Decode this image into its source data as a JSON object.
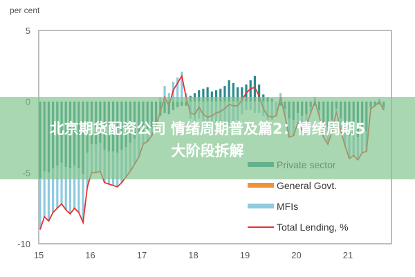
{
  "chart_data": {
    "type": "bar",
    "stacked": true,
    "unit_label": "per cent",
    "x_start": "2015-01",
    "frequency": "monthly",
    "x_tick_labels": [
      "15",
      "16",
      "17",
      "18",
      "19",
      "20",
      "21"
    ],
    "y_tick_labels": [
      "5",
      "0",
      "-5",
      "-10"
    ],
    "ylim": [
      -10,
      5
    ],
    "grid": false,
    "legend_placement": "bottom-right",
    "series": [
      {
        "name": "Private sector",
        "kind": "bar",
        "color": "#2b8a8c",
        "values": [
          -5.4,
          -4.9,
          -5.0,
          -4.7,
          -4.5,
          -4.3,
          -4.6,
          -4.7,
          -4.5,
          -4.7,
          -5.1,
          -3.6,
          -3.0,
          -3.0,
          -2.9,
          -3.4,
          -3.5,
          -3.5,
          -3.6,
          -3.4,
          -3.2,
          -2.9,
          -2.6,
          -2.3,
          -2.2,
          -2.0,
          -1.8,
          -1.5,
          -1.0,
          -0.8,
          -0.9,
          -0.6,
          -0.4,
          -0.3,
          -0.3,
          0.4,
          0.6,
          0.8,
          0.9,
          1.0,
          0.7,
          0.8,
          0.9,
          1.1,
          1.5,
          1.3,
          1.0,
          1.0,
          1.2,
          1.5,
          1.8,
          1.2,
          0.5,
          0.3,
          0.2,
          0.0,
          -0.3,
          -0.5,
          -1.2,
          -1.3,
          -0.8,
          -1.0,
          -0.9,
          -0.4,
          -0.3,
          -0.6,
          -1.5,
          -1.8,
          -1.3,
          -0.5,
          -1.2,
          -1.9,
          -2.4,
          -2.3,
          -2.5,
          -2.2,
          -2.1,
          -0.4,
          -0.3,
          -0.2,
          -0.4
        ]
      },
      {
        "name": "General Govt.",
        "kind": "bar",
        "color": "#f0923a",
        "values": [
          0,
          0,
          0,
          0,
          0,
          0,
          0,
          0,
          0,
          0,
          0,
          0,
          0,
          0,
          0,
          0,
          0,
          0,
          0,
          0,
          0,
          0,
          0,
          0,
          0,
          0,
          0,
          0,
          0,
          0,
          0,
          0,
          0,
          0,
          0,
          0,
          0,
          0,
          0,
          0,
          0,
          0,
          0,
          0,
          0,
          0,
          0,
          0,
          0,
          0,
          0,
          0,
          0,
          0,
          0,
          0,
          0,
          0,
          0,
          0,
          0,
          0,
          0,
          0,
          0,
          0,
          0,
          0,
          0,
          0,
          0,
          0,
          0,
          0,
          0,
          0,
          0,
          0,
          0,
          0,
          0
        ]
      },
      {
        "name": "MFIs",
        "kind": "bar",
        "color": "#8ecae0",
        "values": [
          -3.6,
          -3.2,
          -3.4,
          -3.1,
          -3.0,
          -2.9,
          -3.0,
          -3.2,
          -3.0,
          -3.1,
          -3.4,
          -2.4,
          -2.0,
          -2.0,
          -2.0,
          -2.3,
          -2.3,
          -2.4,
          -2.4,
          -2.3,
          -2.1,
          -2.0,
          -1.8,
          -1.6,
          -0.8,
          -0.8,
          -0.6,
          -0.2,
          0.3,
          1.1,
          0.6,
          1.4,
          1.7,
          2.1,
          0.6,
          -1.2,
          -1.5,
          -1.2,
          -1.8,
          -2.1,
          -1.7,
          -1.6,
          -1.6,
          -1.6,
          -1.7,
          -1.6,
          -1.3,
          -0.9,
          -0.6,
          -0.6,
          -0.8,
          -0.8,
          -1.0,
          -1.3,
          -1.3,
          -1.0,
          0.6,
          -0.5,
          -1.3,
          -1.1,
          -0.7,
          -1.0,
          -0.8,
          -0.4,
          0.3,
          -0.4,
          -1.0,
          -1.2,
          -0.8,
          -0.2,
          -0.8,
          -1.2,
          -1.6,
          -1.5,
          -1.6,
          -1.4,
          -1.4,
          -0.1,
          0.0,
          0.2,
          -0.2
        ]
      },
      {
        "name": "Total Lending, %",
        "kind": "line",
        "color": "#e8312f",
        "values": [
          -9.0,
          -8.1,
          -8.4,
          -7.8,
          -7.5,
          -7.2,
          -7.6,
          -7.9,
          -7.5,
          -7.8,
          -8.5,
          -6.0,
          -5.0,
          -5.0,
          -4.9,
          -5.7,
          -5.8,
          -5.9,
          -6.0,
          -5.7,
          -5.3,
          -4.9,
          -4.4,
          -3.9,
          -3.0,
          -2.8,
          -2.4,
          -1.7,
          -0.7,
          0.3,
          -0.3,
          0.8,
          1.3,
          1.8,
          0.3,
          -0.8,
          -0.9,
          -0.4,
          -0.9,
          -1.1,
          -1.0,
          -0.8,
          -0.7,
          -0.5,
          -0.2,
          -0.3,
          -0.3,
          0.1,
          0.6,
          0.9,
          1.0,
          0.4,
          -0.5,
          -1.0,
          -1.1,
          -1.0,
          0.3,
          -1.0,
          -2.5,
          -2.4,
          -1.5,
          -2.0,
          -1.7,
          -0.8,
          0.0,
          -1.0,
          -2.5,
          -3.0,
          -2.1,
          -0.7,
          -2.0,
          -3.1,
          -4.0,
          -3.8,
          -4.1,
          -3.6,
          -3.5,
          -0.5,
          -0.3,
          0.0,
          -0.6
        ]
      }
    ]
  },
  "overlay_banner": {
    "line1": "北京期货配资公司 情绪周期普及篇2：情绪周期5",
    "line2": "大阶段拆解"
  }
}
